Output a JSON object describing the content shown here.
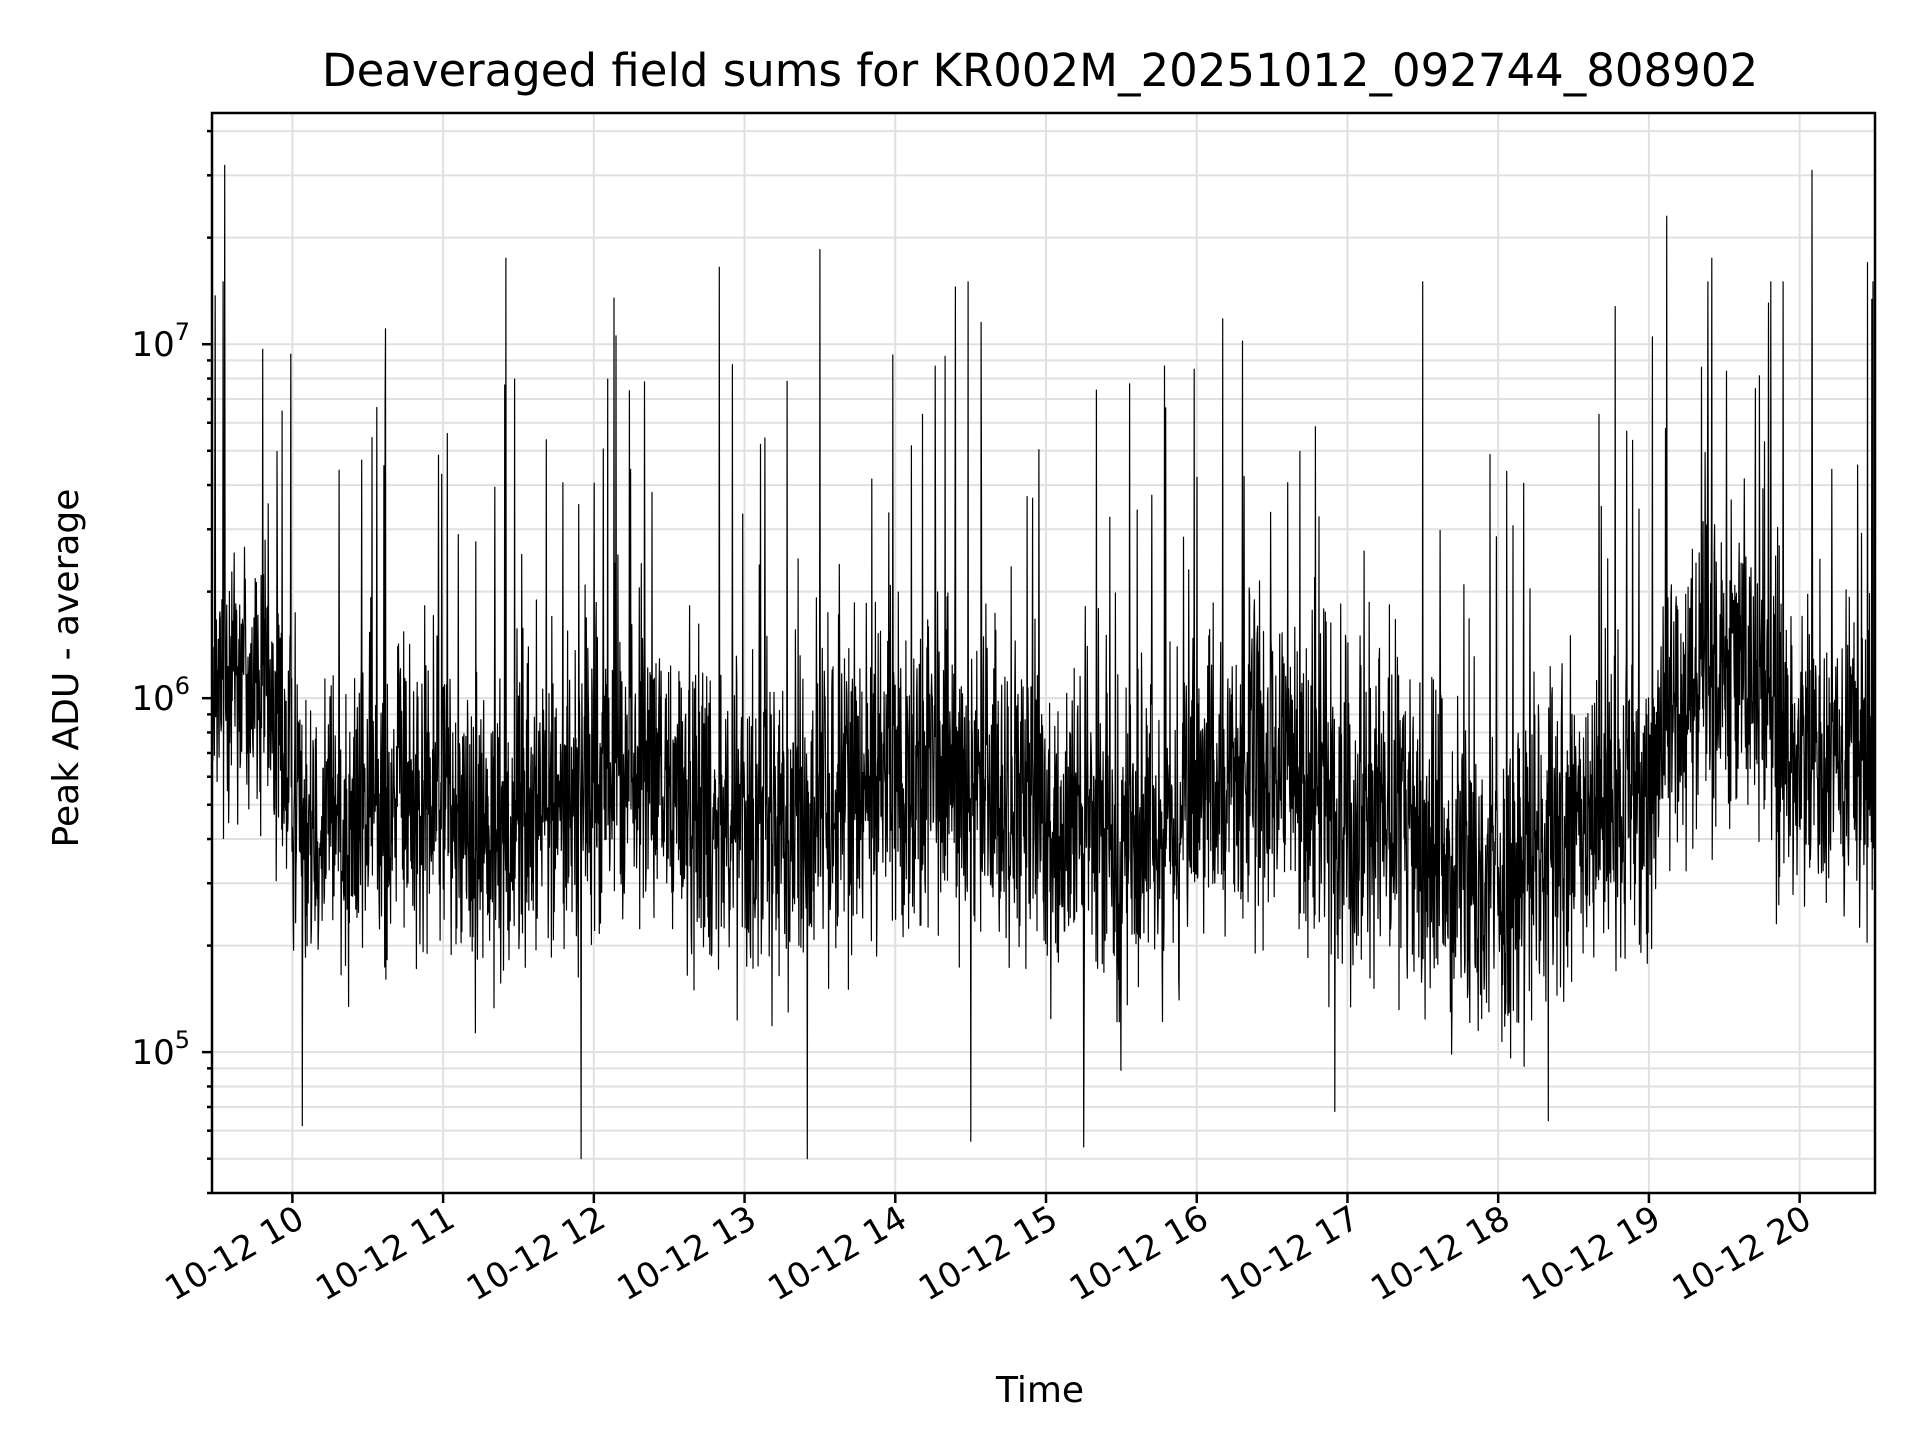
{
  "chart_data": {
    "type": "line",
    "title": "Deaveraged field sums for KR002M_20251012_092744_808902",
    "xlabel": "Time",
    "ylabel": "Peak ADU - average",
    "yscale": "log",
    "ylim": [
      40000,
      45000000
    ],
    "xlim": [
      "2025-10-12 09:28",
      "2025-10-12 20:30"
    ],
    "x_ticks": [
      {
        "value": "2025-10-12 10:00",
        "label": "10-12 10"
      },
      {
        "value": "2025-10-12 11:00",
        "label": "10-12 11"
      },
      {
        "value": "2025-10-12 12:00",
        "label": "10-12 12"
      },
      {
        "value": "2025-10-12 13:00",
        "label": "10-12 13"
      },
      {
        "value": "2025-10-12 14:00",
        "label": "10-12 14"
      },
      {
        "value": "2025-10-12 15:00",
        "label": "10-12 15"
      },
      {
        "value": "2025-10-12 16:00",
        "label": "10-12 16"
      },
      {
        "value": "2025-10-12 17:00",
        "label": "10-12 17"
      },
      {
        "value": "2025-10-12 18:00",
        "label": "10-12 18"
      },
      {
        "value": "2025-10-12 19:00",
        "label": "10-12 19"
      },
      {
        "value": "2025-10-12 20:00",
        "label": "10-12 20"
      }
    ],
    "y_ticks": [
      {
        "value": 100000,
        "base": "10",
        "exp": "5"
      },
      {
        "value": 1000000,
        "base": "10",
        "exp": "6"
      },
      {
        "value": 10000000,
        "base": "10",
        "exp": "7"
      }
    ],
    "grid": true,
    "legend": "none",
    "line_color": "#000000",
    "series": [
      {
        "x": [
          "2025-10-12 09:28",
          "2025-10-12 09:35",
          "2025-10-12 09:40",
          "2025-10-12 09:50",
          "2025-10-12 10:00",
          "2025-10-12 10:10",
          "2025-10-12 10:20",
          "2025-10-12 10:30",
          "2025-10-12 10:40",
          "2025-10-12 10:50",
          "2025-10-12 11:00",
          "2025-10-12 11:10",
          "2025-10-12 11:20",
          "2025-10-12 11:30",
          "2025-10-12 11:40",
          "2025-10-12 11:50",
          "2025-10-12 12:00",
          "2025-10-12 12:10",
          "2025-10-12 12:20",
          "2025-10-12 12:30",
          "2025-10-12 12:40",
          "2025-10-12 12:50",
          "2025-10-12 13:00",
          "2025-10-12 13:10",
          "2025-10-12 13:20",
          "2025-10-12 13:30",
          "2025-10-12 13:40",
          "2025-10-12 13:50",
          "2025-10-12 14:00",
          "2025-10-12 14:10",
          "2025-10-12 14:20",
          "2025-10-12 14:30",
          "2025-10-12 14:40",
          "2025-10-12 14:50",
          "2025-10-12 15:00",
          "2025-10-12 15:10",
          "2025-10-12 15:20",
          "2025-10-12 15:30",
          "2025-10-12 15:40",
          "2025-10-12 15:50",
          "2025-10-12 16:00",
          "2025-10-12 16:10",
          "2025-10-12 16:20",
          "2025-10-12 16:30",
          "2025-10-12 16:40",
          "2025-10-12 16:50",
          "2025-10-12 17:00",
          "2025-10-12 17:10",
          "2025-10-12 17:20",
          "2025-10-12 17:30",
          "2025-10-12 17:40",
          "2025-10-12 17:50",
          "2025-10-12 18:00",
          "2025-10-12 18:10",
          "2025-10-12 18:20",
          "2025-10-12 18:30",
          "2025-10-12 18:40",
          "2025-10-12 18:50",
          "2025-10-12 19:00",
          "2025-10-12 19:10",
          "2025-10-12 19:20",
          "2025-10-12 19:30",
          "2025-10-12 19:40",
          "2025-10-12 19:50",
          "2025-10-12 20:00",
          "2025-10-12 20:10",
          "2025-10-12 20:20",
          "2025-10-12 20:30"
        ],
        "y": [
          700000,
          1500000,
          1200000,
          1000000,
          600000,
          500000,
          450000,
          500000,
          550000,
          500000,
          550000,
          450000,
          400000,
          480000,
          500000,
          520000,
          600000,
          650000,
          600000,
          550000,
          500000,
          480000,
          450000,
          420000,
          450000,
          500000,
          550000,
          600000,
          620000,
          600000,
          580000,
          550000,
          500000,
          480000,
          450000,
          420000,
          400000,
          380000,
          400000,
          450000,
          500000,
          550000,
          600000,
          620000,
          580000,
          550000,
          500000,
          480000,
          450000,
          400000,
          350000,
          320000,
          300000,
          320000,
          350000,
          400000,
          450000,
          500000,
          600000,
          1000000,
          1300000,
          1400000,
          1200000,
          900000,
          700000,
          600000,
          650000,
          700000
        ]
      }
    ],
    "peaks": [
      {
        "x": "2025-10-12 09:33",
        "y": 32000000
      },
      {
        "x": "2025-10-12 11:25",
        "y": 17500000
      },
      {
        "x": "2025-10-12 12:08",
        "y": 13500000
      },
      {
        "x": "2025-10-12 12:50",
        "y": 16500000
      },
      {
        "x": "2025-10-12 13:30",
        "y": 18500000
      },
      {
        "x": "2025-10-12 15:59",
        "y": 8500000
      },
      {
        "x": "2025-10-12 17:30",
        "y": 15000000
      },
      {
        "x": "2025-10-12 19:07",
        "y": 23000000
      },
      {
        "x": "2025-10-12 19:25",
        "y": 17500000
      },
      {
        "x": "2025-10-12 20:05",
        "y": 31000000
      },
      {
        "x": "2025-10-12 20:27",
        "y": 17000000
      }
    ],
    "troughs": [
      {
        "x": "2025-10-12 10:04",
        "y": 62000
      },
      {
        "x": "2025-10-12 11:55",
        "y": 50000
      },
      {
        "x": "2025-10-12 13:25",
        "y": 50000
      },
      {
        "x": "2025-10-12 14:30",
        "y": 56000
      },
      {
        "x": "2025-10-12 15:15",
        "y": 54000
      },
      {
        "x": "2025-10-12 16:55",
        "y": 68000
      },
      {
        "x": "2025-10-12 18:20",
        "y": 64000
      }
    ]
  }
}
